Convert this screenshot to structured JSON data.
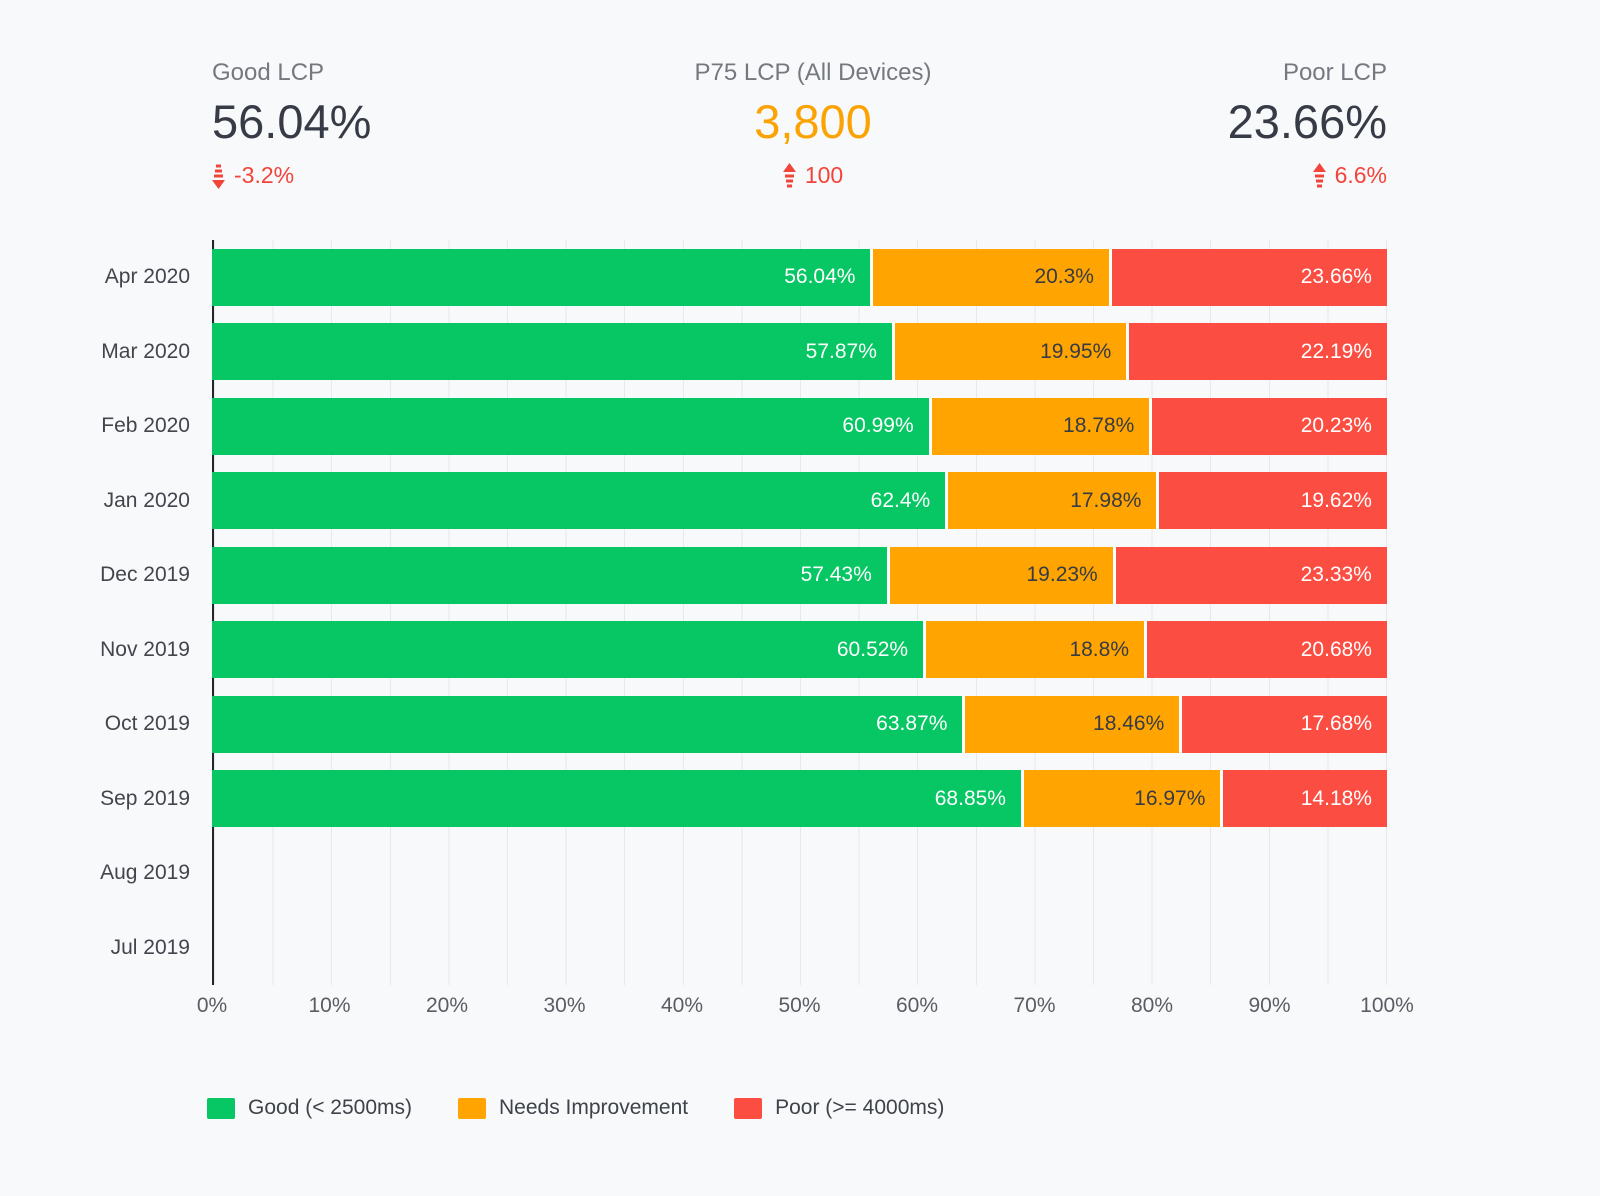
{
  "colors": {
    "background": "#f8f9fb",
    "grid": "#e6e8eb",
    "axis": "#24262a",
    "good": "#06c763",
    "needs_improvement": "#ffa400",
    "poor": "#fb4d42",
    "delta": "#f2443a",
    "p75_value": "#fba303",
    "value_dark": "#363b45"
  },
  "header": {
    "stats": [
      {
        "label": "Good LCP",
        "value": "56.04%",
        "delta": "-3.2%",
        "direction": "down"
      },
      {
        "label": "P75 LCP (All Devices)",
        "value": "3,800",
        "delta": "100",
        "direction": "up"
      },
      {
        "label": "Poor LCP",
        "value": "23.66%",
        "delta": "6.6%",
        "direction": "up"
      }
    ]
  },
  "chart_data": {
    "type": "bar",
    "stacked": true,
    "orientation": "horizontal",
    "title": "",
    "xlabel": "",
    "ylabel": "",
    "xlim": [
      0,
      100
    ],
    "x_ticks": [
      "0%",
      "10%",
      "20%",
      "30%",
      "40%",
      "50%",
      "60%",
      "70%",
      "80%",
      "90%",
      "100%"
    ],
    "grid": "vertical, minor every 5%",
    "legend_position": "bottom",
    "categories": [
      "Apr 2020",
      "Mar 2020",
      "Feb 2020",
      "Jan 2020",
      "Dec 2019",
      "Nov 2019",
      "Oct 2019",
      "Sep 2019",
      "Aug 2019",
      "Jul 2019"
    ],
    "series": [
      {
        "name": "Good (< 2500ms)",
        "color": "#06c763",
        "label_color": "#ffffff",
        "values": [
          56.04,
          57.87,
          60.99,
          62.4,
          57.43,
          60.52,
          63.87,
          68.85,
          null,
          null
        ]
      },
      {
        "name": "Needs Improvement",
        "color": "#ffa400",
        "label_color": "#363b45",
        "values": [
          20.3,
          19.95,
          18.78,
          17.98,
          19.23,
          18.8,
          18.46,
          16.97,
          null,
          null
        ]
      },
      {
        "name": "Poor (>= 4000ms)",
        "color": "#fb4d42",
        "label_color": "#ffffff",
        "values": [
          23.66,
          22.19,
          20.23,
          19.62,
          23.33,
          20.68,
          17.68,
          14.18,
          null,
          null
        ]
      }
    ]
  }
}
